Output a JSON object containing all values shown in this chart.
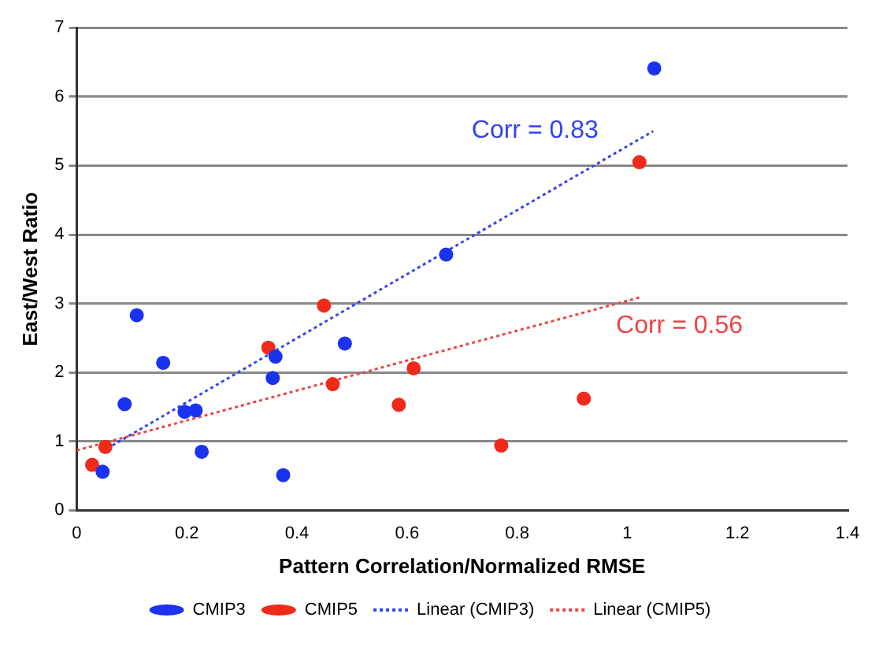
{
  "chart_data": {
    "type": "scatter",
    "xlabel": "Pattern Correlation/Normalized RMSE",
    "ylabel": "East/West Ratio",
    "xlim": [
      0,
      1.4
    ],
    "xticks": [
      0,
      0.2,
      0.4,
      0.6,
      0.8,
      1,
      1.2,
      1.4
    ],
    "ylim": [
      0,
      7
    ],
    "yticks": [
      0,
      1,
      2,
      3,
      4,
      5,
      6,
      7
    ],
    "grid": "y",
    "legend": "bottom",
    "marker": "circle",
    "series": [
      {
        "name": "CMIP3",
        "color": "#1a33f0",
        "x": [
          0.047,
          0.087,
          0.109,
          0.157,
          0.196,
          0.216,
          0.227,
          0.356,
          0.361,
          0.375,
          0.487,
          0.671,
          1.049
        ],
        "values": [
          0.56,
          1.54,
          2.83,
          2.14,
          1.43,
          1.45,
          0.85,
          1.92,
          2.23,
          0.51,
          2.42,
          3.71,
          6.41
        ]
      },
      {
        "name": "CMIP5",
        "color": "#f02a1a",
        "x": [
          0.028,
          0.052,
          0.348,
          0.449,
          0.465,
          0.585,
          0.612,
          0.771,
          0.921,
          1.022
        ],
        "values": [
          0.66,
          0.92,
          2.36,
          2.97,
          1.83,
          1.53,
          2.06,
          0.94,
          1.62,
          5.05
        ]
      },
      {
        "name": "Linear (CMIP3)",
        "type": "line",
        "color": "#3344ee",
        "line_style": "dotted",
        "marker": "none",
        "x": [
          0.045,
          1.047
        ],
        "values": [
          0.85,
          5.5
        ]
      },
      {
        "name": "Linear (CMIP5)",
        "type": "line",
        "color": "#ee4444",
        "line_style": "dotted",
        "marker": "none",
        "x": [
          0,
          1.023
        ],
        "values": [
          0.87,
          3.09
        ]
      }
    ],
    "annotations": [
      "Corr = 0.83",
      "Corr = 0.56"
    ]
  }
}
